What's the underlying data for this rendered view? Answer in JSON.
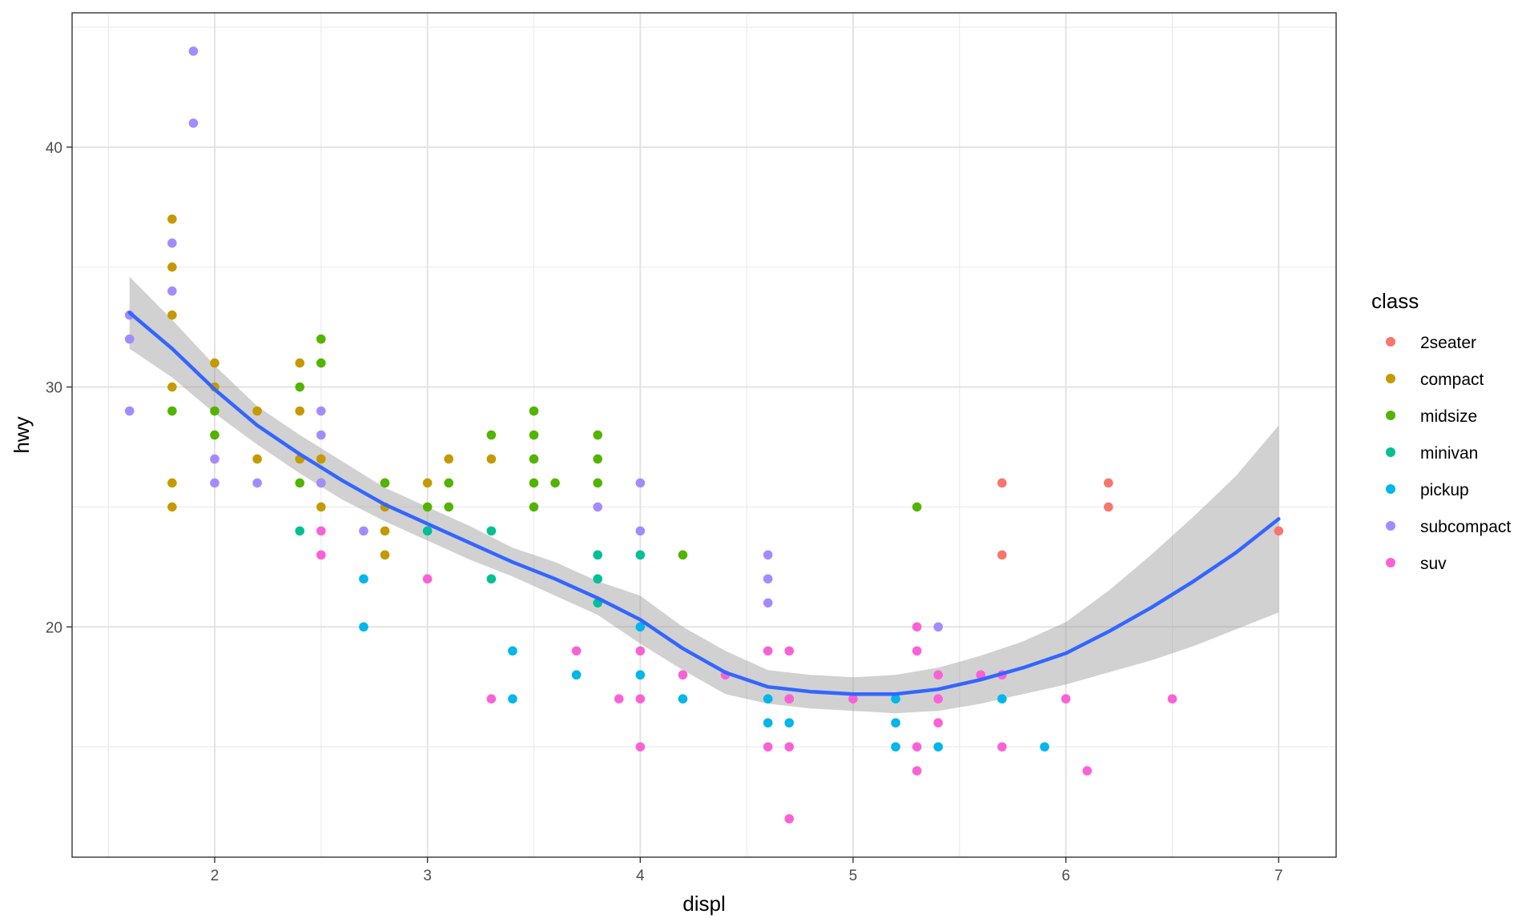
{
  "chart_data": {
    "type": "scatter",
    "title": "",
    "xlabel": "displ",
    "ylabel": "hwy",
    "xlim": [
      1.33,
      7.27
    ],
    "ylim": [
      10.4,
      45.6
    ],
    "x_ticks": [
      2,
      3,
      4,
      5,
      6,
      7
    ],
    "y_ticks": [
      20,
      30,
      40
    ],
    "grid": true,
    "legend": {
      "title": "class",
      "position": "right"
    },
    "series": [
      {
        "name": "2seater",
        "color": "#F8766D",
        "points": [
          [
            5.7,
            26
          ],
          [
            5.7,
            23
          ],
          [
            6.2,
            26
          ],
          [
            6.2,
            25
          ],
          [
            7.0,
            24
          ]
        ]
      },
      {
        "name": "compact",
        "color": "#C49A00",
        "points": [
          [
            1.8,
            37
          ],
          [
            1.8,
            35
          ],
          [
            1.8,
            33
          ],
          [
            1.8,
            30
          ],
          [
            1.8,
            26
          ],
          [
            1.8,
            25
          ],
          [
            2.0,
            31
          ],
          [
            2.0,
            30
          ],
          [
            2.2,
            29
          ],
          [
            2.2,
            27
          ],
          [
            2.4,
            31
          ],
          [
            2.4,
            29
          ],
          [
            2.4,
            27
          ],
          [
            2.5,
            27
          ],
          [
            2.5,
            26
          ],
          [
            2.5,
            25
          ],
          [
            2.8,
            26
          ],
          [
            2.8,
            25
          ],
          [
            2.8,
            24
          ],
          [
            2.8,
            23
          ],
          [
            3.0,
            26
          ],
          [
            3.1,
            27
          ],
          [
            3.3,
            27
          ]
        ]
      },
      {
        "name": "midsize",
        "color": "#53B400",
        "points": [
          [
            1.8,
            29
          ],
          [
            2.0,
            29
          ],
          [
            2.0,
            28
          ],
          [
            2.4,
            30
          ],
          [
            2.4,
            26
          ],
          [
            2.5,
            32
          ],
          [
            2.5,
            31
          ],
          [
            2.8,
            26
          ],
          [
            3.0,
            25
          ],
          [
            3.1,
            26
          ],
          [
            3.1,
            25
          ],
          [
            3.3,
            28
          ],
          [
            3.5,
            29
          ],
          [
            3.5,
            28
          ],
          [
            3.5,
            27
          ],
          [
            3.5,
            26
          ],
          [
            3.5,
            25
          ],
          [
            3.6,
            26
          ],
          [
            3.8,
            28
          ],
          [
            3.8,
            27
          ],
          [
            3.8,
            26
          ],
          [
            4.2,
            23
          ],
          [
            5.3,
            25
          ]
        ]
      },
      {
        "name": "minivan",
        "color": "#00C094",
        "points": [
          [
            2.4,
            24
          ],
          [
            3.0,
            24
          ],
          [
            3.3,
            24
          ],
          [
            3.3,
            22
          ],
          [
            3.8,
            23
          ],
          [
            3.8,
            22
          ],
          [
            3.8,
            21
          ],
          [
            4.0,
            23
          ]
        ]
      },
      {
        "name": "pickup",
        "color": "#00B6EB",
        "points": [
          [
            2.7,
            22
          ],
          [
            2.7,
            20
          ],
          [
            3.4,
            19
          ],
          [
            3.4,
            17
          ],
          [
            3.7,
            18
          ],
          [
            4.0,
            18
          ],
          [
            4.0,
            20
          ],
          [
            4.2,
            17
          ],
          [
            4.6,
            17
          ],
          [
            4.6,
            16
          ],
          [
            4.7,
            17
          ],
          [
            4.7,
            16
          ],
          [
            5.2,
            17
          ],
          [
            5.2,
            16
          ],
          [
            5.2,
            15
          ],
          [
            5.4,
            15
          ],
          [
            5.7,
            17
          ],
          [
            5.9,
            15
          ]
        ]
      },
      {
        "name": "subcompact",
        "color": "#A58AFF",
        "points": [
          [
            1.6,
            33
          ],
          [
            1.6,
            32
          ],
          [
            1.6,
            29
          ],
          [
            1.8,
            36
          ],
          [
            1.8,
            34
          ],
          [
            1.9,
            44
          ],
          [
            1.9,
            41
          ],
          [
            2.0,
            27
          ],
          [
            2.0,
            26
          ],
          [
            2.2,
            26
          ],
          [
            2.5,
            29
          ],
          [
            2.5,
            28
          ],
          [
            2.5,
            26
          ],
          [
            2.7,
            24
          ],
          [
            3.8,
            25
          ],
          [
            4.0,
            26
          ],
          [
            4.0,
            24
          ],
          [
            4.6,
            23
          ],
          [
            4.6,
            22
          ],
          [
            4.6,
            21
          ],
          [
            5.4,
            20
          ]
        ]
      },
      {
        "name": "suv",
        "color": "#FB61D7",
        "points": [
          [
            2.5,
            24
          ],
          [
            2.5,
            23
          ],
          [
            3.0,
            22
          ],
          [
            3.3,
            17
          ],
          [
            3.7,
            19
          ],
          [
            3.9,
            17
          ],
          [
            4.0,
            19
          ],
          [
            4.0,
            17
          ],
          [
            4.0,
            15
          ],
          [
            4.2,
            18
          ],
          [
            4.4,
            18
          ],
          [
            4.6,
            19
          ],
          [
            4.6,
            15
          ],
          [
            4.7,
            19
          ],
          [
            4.7,
            17
          ],
          [
            4.7,
            15
          ],
          [
            4.7,
            12
          ],
          [
            5.0,
            17
          ],
          [
            5.3,
            20
          ],
          [
            5.3,
            19
          ],
          [
            5.3,
            15
          ],
          [
            5.3,
            14
          ],
          [
            5.4,
            18
          ],
          [
            5.4,
            17
          ],
          [
            5.4,
            16
          ],
          [
            5.6,
            18
          ],
          [
            5.7,
            18
          ],
          [
            5.7,
            15
          ],
          [
            6.0,
            17
          ],
          [
            6.1,
            14
          ],
          [
            6.5,
            17
          ]
        ]
      }
    ],
    "smooth": {
      "method": "loess",
      "color": "#3366FF",
      "band_color": "#999999",
      "points": [
        [
          1.6,
          33.1
        ],
        [
          1.8,
          31.6
        ],
        [
          2.0,
          29.9
        ],
        [
          2.2,
          28.4
        ],
        [
          2.4,
          27.2
        ],
        [
          2.6,
          26.1
        ],
        [
          2.8,
          25.1
        ],
        [
          3.0,
          24.3
        ],
        [
          3.2,
          23.5
        ],
        [
          3.4,
          22.7
        ],
        [
          3.6,
          22.0
        ],
        [
          3.8,
          21.2
        ],
        [
          4.0,
          20.3
        ],
        [
          4.2,
          19.1
        ],
        [
          4.4,
          18.1
        ],
        [
          4.6,
          17.5
        ],
        [
          4.8,
          17.3
        ],
        [
          5.0,
          17.2
        ],
        [
          5.2,
          17.2
        ],
        [
          5.4,
          17.4
        ],
        [
          5.6,
          17.8
        ],
        [
          5.8,
          18.3
        ],
        [
          6.0,
          18.9
        ],
        [
          6.2,
          19.8
        ],
        [
          6.4,
          20.8
        ],
        [
          6.6,
          21.9
        ],
        [
          6.8,
          23.1
        ],
        [
          7.0,
          24.5
        ]
      ],
      "lower": [
        [
          1.6,
          31.6
        ],
        [
          1.8,
          30.4
        ],
        [
          2.0,
          28.9
        ],
        [
          2.2,
          27.6
        ],
        [
          2.4,
          26.4
        ],
        [
          2.6,
          25.3
        ],
        [
          2.8,
          24.4
        ],
        [
          3.0,
          23.6
        ],
        [
          3.2,
          22.8
        ],
        [
          3.4,
          22.1
        ],
        [
          3.6,
          21.3
        ],
        [
          3.8,
          20.5
        ],
        [
          4.0,
          19.3
        ],
        [
          4.2,
          18.2
        ],
        [
          4.4,
          17.2
        ],
        [
          4.6,
          16.8
        ],
        [
          4.8,
          16.6
        ],
        [
          5.0,
          16.5
        ],
        [
          5.2,
          16.4
        ],
        [
          5.4,
          16.5
        ],
        [
          5.6,
          16.8
        ],
        [
          5.8,
          17.2
        ],
        [
          6.0,
          17.6
        ],
        [
          6.2,
          18.1
        ],
        [
          6.4,
          18.6
        ],
        [
          6.6,
          19.2
        ],
        [
          6.8,
          19.9
        ],
        [
          7.0,
          20.6
        ]
      ],
      "upper": [
        [
          1.6,
          34.6
        ],
        [
          1.8,
          32.8
        ],
        [
          2.0,
          30.9
        ],
        [
          2.2,
          29.2
        ],
        [
          2.4,
          28.0
        ],
        [
          2.6,
          26.9
        ],
        [
          2.8,
          25.8
        ],
        [
          3.0,
          25.0
        ],
        [
          3.2,
          24.2
        ],
        [
          3.4,
          23.3
        ],
        [
          3.6,
          22.7
        ],
        [
          3.8,
          21.9
        ],
        [
          4.0,
          21.3
        ],
        [
          4.2,
          20.0
        ],
        [
          4.4,
          19.0
        ],
        [
          4.6,
          18.2
        ],
        [
          4.8,
          18.0
        ],
        [
          5.0,
          17.9
        ],
        [
          5.2,
          18.0
        ],
        [
          5.4,
          18.3
        ],
        [
          5.6,
          18.8
        ],
        [
          5.8,
          19.4
        ],
        [
          6.0,
          20.2
        ],
        [
          6.2,
          21.5
        ],
        [
          6.4,
          23.0
        ],
        [
          6.6,
          24.6
        ],
        [
          6.8,
          26.3
        ],
        [
          7.0,
          28.4
        ]
      ]
    }
  }
}
